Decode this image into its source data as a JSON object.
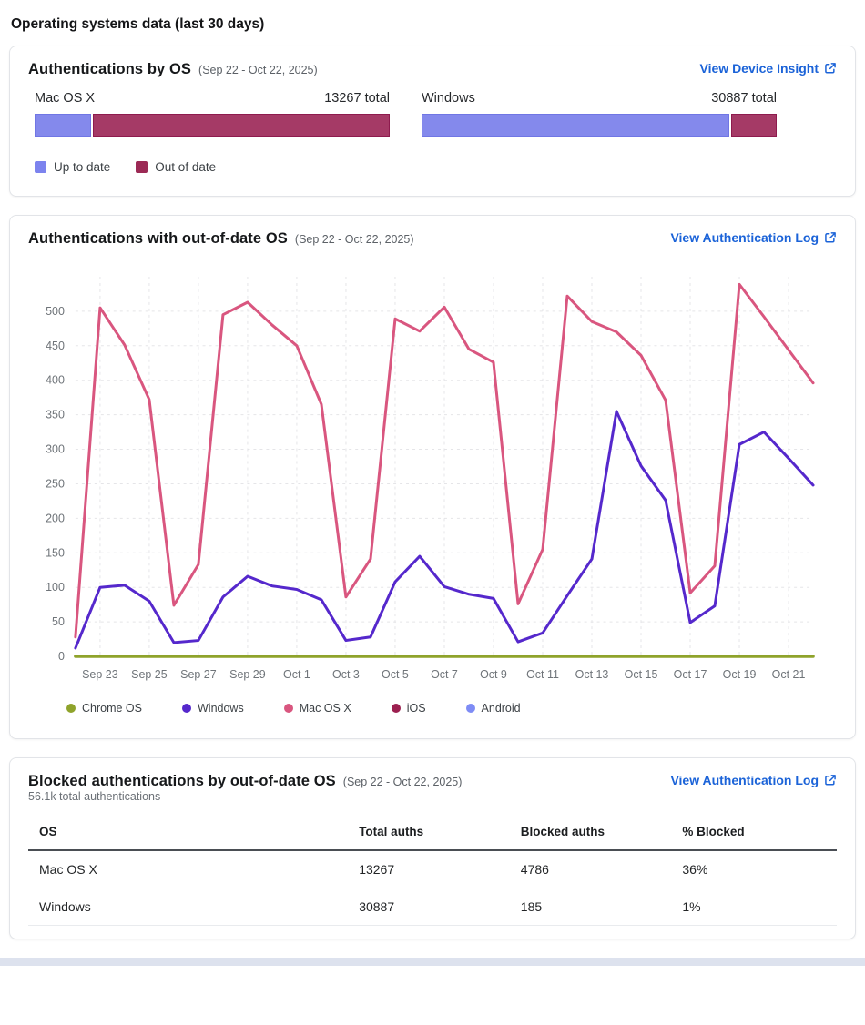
{
  "page": {
    "title": "Operating systems data (last 30 days)"
  },
  "colors": {
    "link_blue": "#1b63d8",
    "up_to_date": "#8489ec",
    "out_of_date": "#a53a66",
    "chrome_os": "#8fa32b",
    "windows": "#5528cc",
    "mac_os_x": "#d9567f",
    "ios": "#9c2050",
    "android": "#7e8cf5"
  },
  "card_auth_by_os": {
    "title": "Authentications by OS",
    "date_range": "(Sep 22 - Oct 22, 2025)",
    "link_label": "View Device Insight",
    "bars": [
      {
        "os": "Mac OS X",
        "total_label": "13267 total",
        "up_to_date_pct": 16,
        "out_of_date_pct": 84
      },
      {
        "os": "Windows",
        "total_label": "30887 total",
        "up_to_date_pct": 87,
        "out_of_date_pct": 13
      }
    ],
    "legend": [
      {
        "label": "Up to date",
        "color": "#7c83ee"
      },
      {
        "label": "Out of date",
        "color": "#9c2a55"
      }
    ]
  },
  "card_out_of_date_chart": {
    "title": "Authentications with out-of-date OS",
    "date_range": "(Sep 22 - Oct 22, 2025)",
    "link_label": "View Authentication Log",
    "chart_data": {
      "type": "line",
      "title": "Authentications with out-of-date OS",
      "x": [
        "Sep 22",
        "Sep 23",
        "Sep 24",
        "Sep 25",
        "Sep 26",
        "Sep 27",
        "Sep 28",
        "Sep 29",
        "Sep 30",
        "Oct 1",
        "Oct 2",
        "Oct 3",
        "Oct 4",
        "Oct 5",
        "Oct 6",
        "Oct 7",
        "Oct 8",
        "Oct 9",
        "Oct 10",
        "Oct 11",
        "Oct 12",
        "Oct 13",
        "Oct 14",
        "Oct 15",
        "Oct 16",
        "Oct 17",
        "Oct 18",
        "Oct 19",
        "Oct 20",
        "Oct 21",
        "Oct 22"
      ],
      "x_tick_labels": [
        "Sep 23",
        "Sep 25",
        "Sep 27",
        "Sep 29",
        "Oct 1",
        "Oct 3",
        "Oct 5",
        "Oct 7",
        "Oct 9",
        "Oct 11",
        "Oct 13",
        "Oct 15",
        "Oct 17",
        "Oct 19",
        "Oct 21"
      ],
      "y_ticks": [
        0,
        50,
        100,
        150,
        200,
        250,
        300,
        350,
        400,
        450,
        500
      ],
      "ylim": [
        0,
        550
      ],
      "grid": true,
      "legend_position": "bottom",
      "series": [
        {
          "name": "Chrome OS",
          "color": "#8fa32b",
          "values": [
            0,
            0,
            0,
            0,
            0,
            0,
            0,
            0,
            0,
            0,
            0,
            0,
            0,
            0,
            0,
            0,
            0,
            0,
            0,
            0,
            0,
            0,
            0,
            0,
            0,
            0,
            0,
            0,
            0,
            0,
            0
          ]
        },
        {
          "name": "Windows",
          "color": "#5528cc",
          "values": [
            12,
            100,
            103,
            80,
            20,
            23,
            86,
            116,
            102,
            97,
            82,
            23,
            28,
            108,
            145,
            101,
            90,
            84,
            21,
            34,
            88,
            141,
            355,
            276,
            226,
            49,
            73,
            307,
            325,
            287,
            248
          ]
        },
        {
          "name": "Mac OS X",
          "color": "#d9567f",
          "values": [
            28,
            505,
            451,
            372,
            74,
            133,
            495,
            513,
            480,
            450,
            365,
            86,
            141,
            489,
            471,
            506,
            445,
            426,
            76,
            155,
            522,
            485,
            470,
            436,
            371,
            92,
            131,
            539,
            492,
            444,
            396
          ]
        },
        {
          "name": "iOS",
          "color": "#9c2050",
          "values": [
            0,
            0,
            0,
            0,
            0,
            0,
            0,
            0,
            0,
            0,
            0,
            0,
            0,
            0,
            0,
            0,
            0,
            0,
            0,
            0,
            0,
            0,
            0,
            0,
            0,
            0,
            0,
            0,
            0,
            0,
            0
          ]
        },
        {
          "name": "Android",
          "color": "#7e8cf5",
          "values": [
            0,
            0,
            0,
            0,
            0,
            0,
            0,
            0,
            0,
            0,
            0,
            0,
            0,
            0,
            0,
            0,
            0,
            0,
            0,
            0,
            0,
            0,
            0,
            0,
            0,
            0,
            0,
            0,
            0,
            0,
            0
          ]
        }
      ]
    }
  },
  "card_blocked": {
    "title": "Blocked authentications by out-of-date OS",
    "date_range": "(Sep 22 - Oct 22, 2025)",
    "link_label": "View Authentication Log",
    "subtitle": "56.1k total authentications",
    "table": {
      "columns": [
        "OS",
        "Total auths",
        "Blocked auths",
        "% Blocked"
      ],
      "rows": [
        [
          "Mac OS X",
          "13267",
          "4786",
          "36%"
        ],
        [
          "Windows",
          "30887",
          "185",
          "1%"
        ]
      ]
    }
  }
}
